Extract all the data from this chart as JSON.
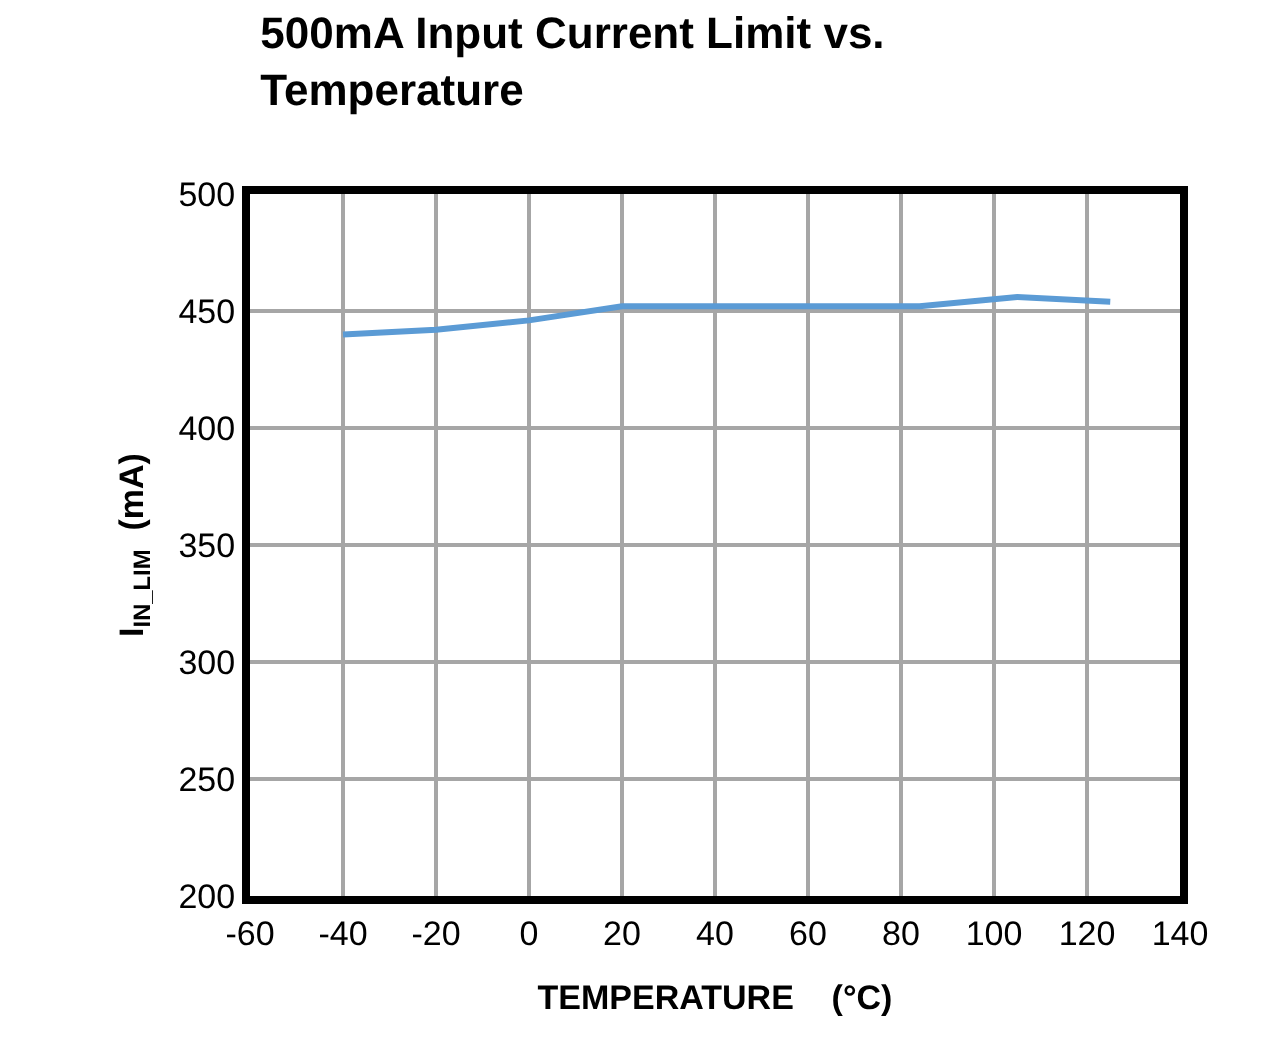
{
  "chart_data": {
    "type": "line",
    "title": "500mA Input Current Limit vs.\nTemperature",
    "xlabel": "TEMPERATURE    (°C)",
    "ylabel": "I$_{IN_LIM}$  (mA)",
    "x": [
      -40,
      -20,
      0,
      20,
      25,
      84,
      105,
      125
    ],
    "series": [
      {
        "color": "#5b9bd5",
        "values": [
          440,
          442,
          446,
          452,
          452,
          452,
          456,
          454
        ]
      }
    ],
    "xlim": [
      -60,
      140
    ],
    "xticks": [
      -60,
      -40,
      -20,
      0,
      20,
      40,
      60,
      80,
      100,
      120,
      140
    ],
    "ylim": [
      200,
      500
    ],
    "yticks": [
      200,
      250,
      300,
      350,
      400,
      450,
      500
    ],
    "grid": true,
    "line_style": "solid"
  }
}
